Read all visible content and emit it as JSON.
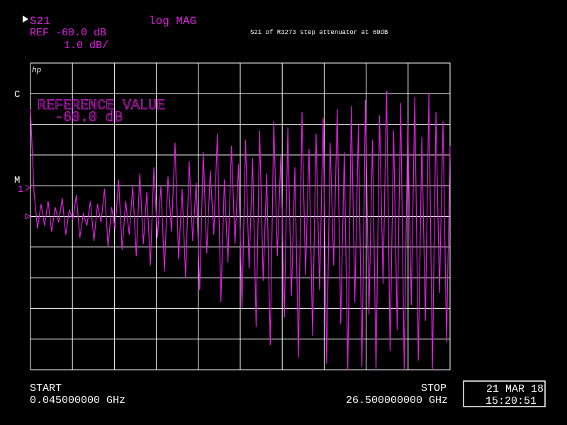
{
  "chart_data": {
    "type": "line",
    "parameter": "S21",
    "format": "log MAG",
    "reference": "REF -60.0 dB",
    "scale": "1.0 dB/",
    "title": "S21 of R3273 step attenuator at 60dB",
    "logo": "hp",
    "channel_flag": "C",
    "annotation": "REFERENCE VALUE",
    "annotation_value": "-60.0 dB",
    "marker_flag": "M",
    "marker": "1",
    "start_label": "START",
    "start_value": "0.045000000 GHz",
    "stop_label": "STOP",
    "stop_value": "26.500000000 GHz",
    "date": "21 MAR 18",
    "time": "15:20:51",
    "xlim": [
      0.045,
      26.5
    ],
    "ylim": [
      -65,
      -55
    ],
    "color": "#e020e0",
    "values": [
      -56.5,
      -59.2,
      -60.4,
      -59.6,
      -60.3,
      -59.5,
      -60.5,
      -59.7,
      -60.2,
      -59.4,
      -60.6,
      -59.8,
      -60.1,
      -59.3,
      -60.7,
      -59.9,
      -60.3,
      -59.5,
      -60.8,
      -59.6,
      -60.2,
      -59.1,
      -61.0,
      -59.7,
      -60.4,
      -58.8,
      -61.1,
      -59.5,
      -60.6,
      -59.0,
      -61.3,
      -58.6,
      -60.9,
      -59.2,
      -61.6,
      -58.4,
      -60.7,
      -59.0,
      -61.8,
      -58.7,
      -60.5,
      -57.6,
      -61.4,
      -59.1,
      -62.0,
      -58.2,
      -60.8,
      -58.9,
      -62.4,
      -57.9,
      -61.2,
      -58.5,
      -60.6,
      -57.3,
      -62.8,
      -58.8,
      -61.5,
      -57.7,
      -60.9,
      -58.3,
      -63.0,
      -57.5,
      -61.7,
      -58.1,
      -63.6,
      -57.2,
      -62.1,
      -58.6,
      -64.2,
      -56.9,
      -61.3,
      -58.0,
      -63.3,
      -57.1,
      -62.6,
      -58.4,
      -64.6,
      -56.6,
      -61.9,
      -57.8,
      -63.9,
      -57.3,
      -62.4,
      -56.8,
      -64.8,
      -57.6,
      -61.6,
      -56.5,
      -63.5,
      -57.9,
      -65.0,
      -56.4,
      -62.8,
      -57.0,
      -64.9,
      -56.2,
      -63.2,
      -57.5,
      -65.0,
      -56.7,
      -62.2,
      -55.9,
      -64.4,
      -57.2,
      -63.7,
      -56.3,
      -65.0,
      -56.8,
      -62.9,
      -56.1,
      -64.7,
      -57.4,
      -63.4,
      -56.0,
      -65.0,
      -56.6,
      -62.5,
      -56.9,
      -64.1,
      -57.7
    ]
  }
}
